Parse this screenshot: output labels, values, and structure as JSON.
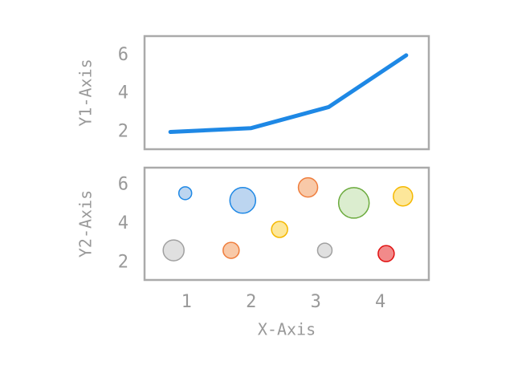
{
  "chart_data": [
    {
      "type": "line",
      "ylabel": "Y1-Axis",
      "x": [
        0.75,
        2,
        3.2,
        4.4
      ],
      "values": [
        2,
        2.2,
        3.3,
        6
      ],
      "color": "#1e88e5",
      "xlim": [
        0.35,
        4.75
      ],
      "ylim": [
        1.1,
        7
      ],
      "yticks": [
        2,
        4,
        6
      ]
    },
    {
      "type": "scatter",
      "ylabel": "Y2-Axis",
      "xlabel": "X-Axis",
      "x": [
        0.98,
        1.87,
        2.88,
        3.59,
        4.35,
        2.44,
        0.8,
        1.69,
        3.14,
        4.09
      ],
      "values": [
        5.58,
        5.21,
        5.88,
        5.08,
        5.42,
        3.71,
        2.63,
        2.63,
        2.63,
        2.46
      ],
      "sizes": [
        8,
        16,
        12,
        19,
        12,
        10,
        13,
        10,
        9,
        10
      ],
      "colors": [
        "#1e88e5",
        "#1e88e5",
        "#ef7d3c",
        "#6aaa3c",
        "#f5b800",
        "#f5b800",
        "#a0a0a0",
        "#ef7d3c",
        "#a0a0a0",
        "#e01010"
      ],
      "fill_colors": [
        "#bcd5f0",
        "#bcd5f0",
        "#f8c9a8",
        "#dbedcf",
        "#fde79a",
        "#fde79a",
        "#e0e0e0",
        "#f8c9a8",
        "#e0e0e0",
        "#f28a8a"
      ],
      "xlim": [
        0.35,
        4.75
      ],
      "xticks": [
        1,
        2,
        3,
        4
      ],
      "ylim": [
        1.1,
        6.9
      ],
      "yticks": [
        2,
        4,
        6
      ]
    }
  ]
}
